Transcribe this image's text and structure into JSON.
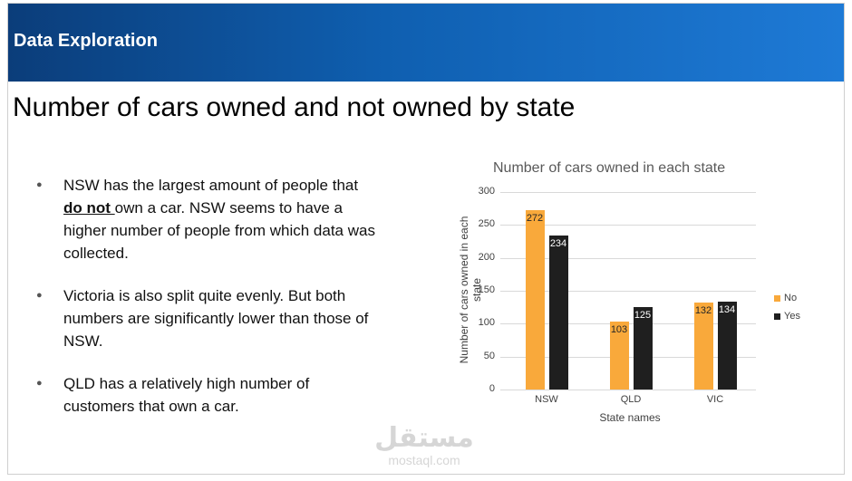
{
  "header": {
    "title": "Data Exploration"
  },
  "slide": {
    "title": "Number of cars owned and not owned by state"
  },
  "bullets": [
    {
      "pre": "NSW has the largest amount of people that ",
      "emph": "do not ",
      "post": "own a car. NSW seems to have a higher number of people from which data was collected."
    },
    {
      "text": "Victoria is also split quite evenly. But both numbers are significantly lower than those of NSW."
    },
    {
      "text": "QLD has a relatively high number of customers that own a car."
    }
  ],
  "chart_data": {
    "type": "bar",
    "title": "Number of cars owned in each state",
    "xlabel": "State names",
    "ylabel": "Number of cars owned in each state",
    "categories": [
      "NSW",
      "QLD",
      "VIC"
    ],
    "series": [
      {
        "name": "No",
        "values": [
          272,
          103,
          132
        ],
        "color": "#f9a93b"
      },
      {
        "name": "Yes",
        "values": [
          234,
          125,
          134
        ],
        "color": "#1f1f1f"
      }
    ],
    "ylim": [
      0,
      300
    ],
    "yticks": [
      "0",
      "50",
      "100",
      "150",
      "200",
      "250",
      "300"
    ],
    "grid": true,
    "legend": "right"
  },
  "watermark": {
    "logo": "مستقل",
    "url": "mostaql.com"
  }
}
